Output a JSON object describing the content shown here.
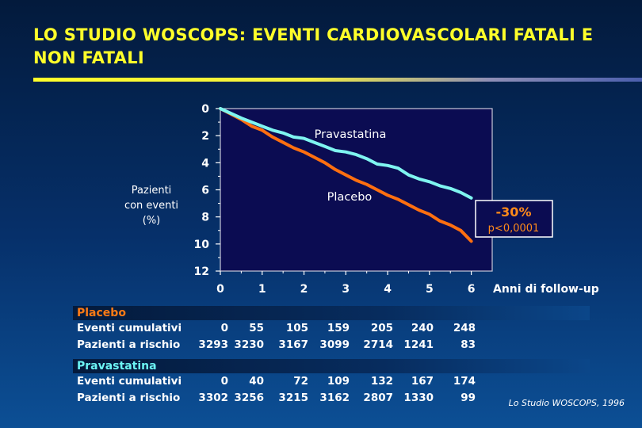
{
  "title": "LO STUDIO WOSCOPS: EVENTI CARDIOVASCOLARI FATALI E NON FATALI",
  "chart_data": {
    "type": "line",
    "ylabel_lines": [
      "Pazienti",
      "con eventi",
      "(%)"
    ],
    "xlabel": "Anni di follow-up",
    "x_ticks": [
      0,
      1,
      2,
      3,
      4,
      5,
      6
    ],
    "y_ticks": [
      0,
      2,
      4,
      6,
      8,
      10,
      12
    ],
    "xlim": [
      0,
      6.5
    ],
    "ylim": [
      0,
      12
    ],
    "y_inverted": true,
    "grid": false,
    "series": [
      {
        "name": "Pravastatina",
        "color": "#7ff5f0",
        "x": [
          0,
          0.5,
          1,
          1.25,
          1.5,
          1.75,
          2,
          2.25,
          2.5,
          2.75,
          3,
          3.25,
          3.5,
          3.75,
          4,
          4.25,
          4.5,
          4.75,
          5,
          5.25,
          5.5,
          5.75,
          6
        ],
        "y": [
          0,
          0.7,
          1.3,
          1.6,
          1.8,
          2.1,
          2.2,
          2.5,
          2.8,
          3.1,
          3.2,
          3.4,
          3.7,
          4.1,
          4.2,
          4.4,
          4.9,
          5.2,
          5.4,
          5.7,
          5.9,
          6.2,
          6.6
        ]
      },
      {
        "name": "Placebo",
        "color": "#ff6f10",
        "x": [
          0,
          0.5,
          0.75,
          1,
          1.25,
          1.5,
          1.75,
          2,
          2.25,
          2.5,
          2.75,
          3,
          3.25,
          3.5,
          3.75,
          4,
          4.25,
          4.5,
          4.75,
          5,
          5.25,
          5.5,
          5.75,
          6
        ],
        "y": [
          0,
          0.8,
          1.3,
          1.6,
          2.1,
          2.5,
          2.9,
          3.2,
          3.6,
          4.0,
          4.5,
          4.9,
          5.3,
          5.6,
          6.0,
          6.4,
          6.7,
          7.1,
          7.5,
          7.8,
          8.3,
          8.6,
          9.0,
          9.8
        ]
      }
    ],
    "annotation": {
      "reduction": "-30%",
      "p_value": "p<0,0001"
    }
  },
  "table": {
    "groups": [
      {
        "name": "Placebo",
        "rows": [
          {
            "label": "Eventi cumulativi",
            "values": [
              "0",
              "55",
              "105",
              "159",
              "205",
              "240",
              "248"
            ]
          },
          {
            "label": "Pazienti a rischio",
            "values": [
              "3293",
              "3230",
              "3167",
              "3099",
              "2714",
              "1241",
              "83"
            ]
          }
        ]
      },
      {
        "name": "Pravastatina",
        "rows": [
          {
            "label": "Eventi cumulativi",
            "values": [
              "0",
              "40",
              "72",
              "109",
              "132",
              "167",
              "174"
            ]
          },
          {
            "label": "Pazienti a rischio",
            "values": [
              "3302",
              "3256",
              "3215",
              "3162",
              "2807",
              "1330",
              "99"
            ]
          }
        ]
      }
    ]
  },
  "source": "Lo Studio WOSCOPS, 1996"
}
